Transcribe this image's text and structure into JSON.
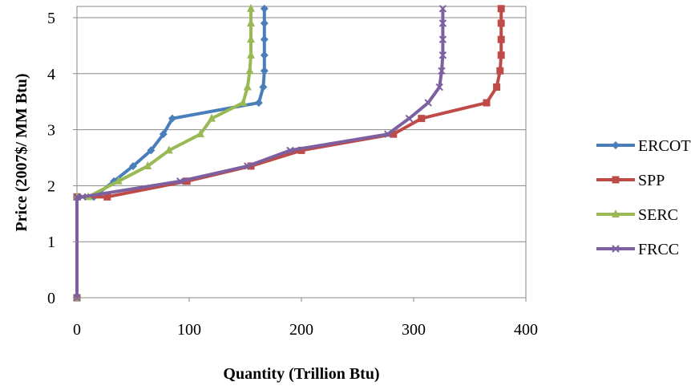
{
  "chart_data": {
    "type": "line",
    "title": "",
    "xlabel": "Quantity (Trillion Btu)",
    "ylabel": "Price (2007$/ MM Btu)",
    "xlim": [
      0,
      400
    ],
    "ylim": [
      0,
      5.2
    ],
    "x_ticks": [
      0,
      100,
      200,
      300,
      400
    ],
    "y_ticks": [
      0,
      1,
      2,
      3,
      4,
      5
    ],
    "grid": "horizontal",
    "legend_position": "right",
    "series": [
      {
        "name": "ERCOT",
        "color": "#4a7ebb",
        "marker": "diamond",
        "points": [
          [
            0,
            0
          ],
          [
            0,
            1.8
          ],
          [
            15,
            1.8
          ],
          [
            33,
            2.08
          ],
          [
            50,
            2.35
          ],
          [
            66,
            2.63
          ],
          [
            77,
            2.92
          ],
          [
            85,
            3.2
          ],
          [
            162,
            3.48
          ],
          [
            166,
            3.76
          ],
          [
            167,
            4.05
          ],
          [
            167,
            4.33
          ],
          [
            167,
            4.61
          ],
          [
            167,
            4.9
          ],
          [
            167,
            5.16
          ]
        ]
      },
      {
        "name": "SPP",
        "color": "#be4b48",
        "marker": "square",
        "points": [
          [
            0,
            0
          ],
          [
            0,
            1.8
          ],
          [
            27,
            1.8
          ],
          [
            98,
            2.08
          ],
          [
            155,
            2.35
          ],
          [
            200,
            2.63
          ],
          [
            282,
            2.92
          ],
          [
            307,
            3.2
          ],
          [
            365,
            3.48
          ],
          [
            374,
            3.76
          ],
          [
            377,
            4.05
          ],
          [
            378,
            4.33
          ],
          [
            378,
            4.61
          ],
          [
            378,
            4.9
          ],
          [
            378,
            5.16
          ]
        ]
      },
      {
        "name": "SERC",
        "color": "#98b954",
        "marker": "triangle",
        "points": [
          [
            0,
            0
          ],
          [
            0,
            1.8
          ],
          [
            10,
            1.8
          ],
          [
            37,
            2.08
          ],
          [
            63,
            2.35
          ],
          [
            82,
            2.63
          ],
          [
            110,
            2.92
          ],
          [
            120,
            3.2
          ],
          [
            148,
            3.48
          ],
          [
            152,
            3.76
          ],
          [
            154,
            4.05
          ],
          [
            155,
            4.33
          ],
          [
            155,
            4.61
          ],
          [
            155,
            4.9
          ],
          [
            155,
            5.16
          ]
        ]
      },
      {
        "name": "FRCC",
        "color": "#7d60a0",
        "marker": "x",
        "points": [
          [
            0,
            0
          ],
          [
            0,
            1.8
          ],
          [
            5,
            1.8
          ],
          [
            92,
            2.08
          ],
          [
            152,
            2.35
          ],
          [
            190,
            2.63
          ],
          [
            277,
            2.92
          ],
          [
            296,
            3.2
          ],
          [
            313,
            3.48
          ],
          [
            323,
            3.76
          ],
          [
            325,
            4.05
          ],
          [
            326,
            4.33
          ],
          [
            326,
            4.61
          ],
          [
            326,
            4.9
          ],
          [
            326,
            5.16
          ]
        ]
      }
    ]
  }
}
